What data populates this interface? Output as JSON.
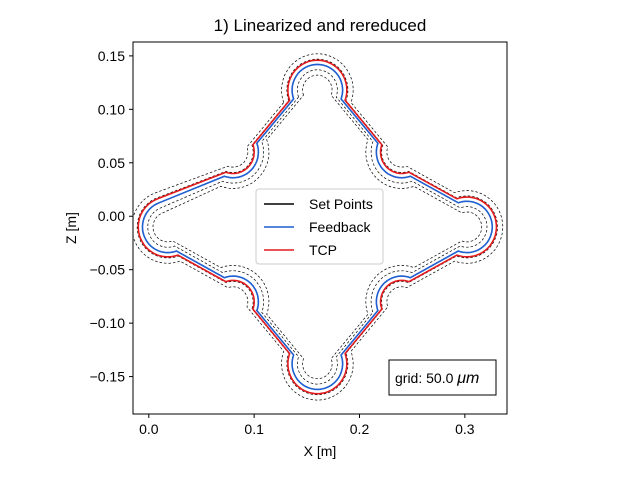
{
  "chart_data": {
    "type": "line",
    "title": "1) Linearized and rereduced",
    "xlabel": "X [m]",
    "ylabel": "Z [m]",
    "xlim": [
      -0.015,
      0.34
    ],
    "ylim": [
      -0.185,
      0.163
    ],
    "xticks": [
      0.0,
      0.1,
      0.2,
      0.3
    ],
    "xtick_labels": [
      "0.0",
      "0.1",
      "0.2",
      "0.3"
    ],
    "yticks": [
      0.15,
      0.1,
      0.05,
      0.0,
      -0.05,
      -0.1,
      -0.15
    ],
    "ytick_labels": [
      "0.15",
      "0.10",
      "0.05",
      "0.00",
      "−0.05",
      "−0.10",
      "−0.15"
    ],
    "grid": false,
    "legend_position": "center",
    "annotation": {
      "prefix": "grid: 50.0 ",
      "unit": "μm"
    },
    "path_description": "closed four-lobed path: upper lobe, right lobe, lower lobe, left lobe, joined by concave arcs",
    "path_radius_m": 0.024,
    "path_centers": {
      "lobes": [
        [
          0.16,
          0.118
        ],
        [
          0.302,
          -0.01
        ],
        [
          0.16,
          -0.138
        ],
        [
          0.018,
          -0.01
        ]
      ],
      "joints": [
        [
          0.08,
          0.06
        ],
        [
          0.24,
          0.06
        ],
        [
          0.24,
          -0.08
        ],
        [
          0.08,
          -0.08
        ]
      ]
    },
    "series": [
      {
        "name": "Set Points",
        "color": "#000000",
        "style": "solid",
        "offset_m": 0.0
      },
      {
        "name": "Feedback",
        "color": "#1f5fd1",
        "style": "solid",
        "offset_m": 0.0
      },
      {
        "name": "TCP",
        "color": "#e41a1c",
        "style": "solid",
        "offset_m": 0.004
      }
    ],
    "tolerance_band_offsets_m": [
      -0.01,
      -0.005,
      0.005,
      0.01
    ],
    "gap_at_start": {
      "from": [
        0.035,
        0.04
      ],
      "to": [
        0.005,
        0.02
      ]
    }
  }
}
